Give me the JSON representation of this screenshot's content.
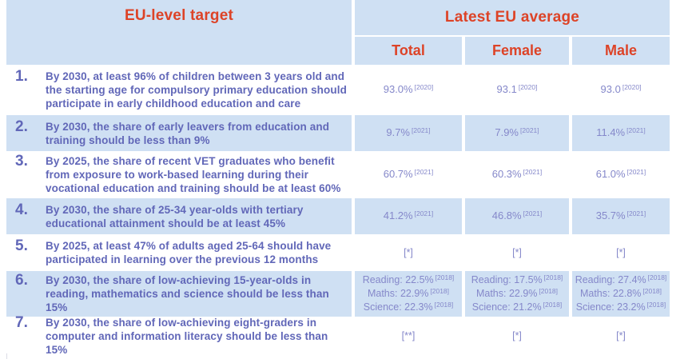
{
  "header": {
    "target": "EU-level target",
    "group": "Latest EU average",
    "cols": {
      "total": "Total",
      "female": "Female",
      "male": "Male"
    }
  },
  "rows": [
    {
      "num": "1.",
      "target": "By 2030, at least 96% of children between 3 years old and the starting age for compulsory primary education should participate in early childhood education and care",
      "total": [
        {
          "text": "93.0%",
          "sup": "[2020]"
        }
      ],
      "female": [
        {
          "text": "93.1",
          "sup": "[2020]"
        }
      ],
      "male": [
        {
          "text": "93.0",
          "sup": "[2020]"
        }
      ]
    },
    {
      "num": "2.",
      "target": "By 2030, the share of early leavers from education and training should be less than 9%",
      "total": [
        {
          "text": "9.7%",
          "sup": "[2021]"
        }
      ],
      "female": [
        {
          "text": "7.9%",
          "sup": "[2021]"
        }
      ],
      "male": [
        {
          "text": "11.4%",
          "sup": "[2021]"
        }
      ]
    },
    {
      "num": "3.",
      "target": "By 2025, the share of recent VET graduates who benefit from exposure to work-based learning during their vocational education and training should be at least 60%",
      "total": [
        {
          "text": "60.7%",
          "sup": "[2021]"
        }
      ],
      "female": [
        {
          "text": "60.3%",
          "sup": "[2021]"
        }
      ],
      "male": [
        {
          "text": "61.0%",
          "sup": "[2021]"
        }
      ]
    },
    {
      "num": "4.",
      "target": "By 2030, the share of 25-34 year-olds with tertiary educational attainment should be at least 45%",
      "total": [
        {
          "text": "41.2%",
          "sup": "[2021]"
        }
      ],
      "female": [
        {
          "text": "46.8%",
          "sup": "[2021]"
        }
      ],
      "male": [
        {
          "text": "35.7%",
          "sup": "[2021]"
        }
      ]
    },
    {
      "num": "5.",
      "target": "By 2025, at least 47% of adults aged 25-64 should have participated in learning over the previous 12 months",
      "total": [
        {
          "text": "[*]",
          "sup": ""
        }
      ],
      "female": [
        {
          "text": "[*]",
          "sup": ""
        }
      ],
      "male": [
        {
          "text": "[*]",
          "sup": ""
        }
      ]
    },
    {
      "num": "6.",
      "target": "By 2030, the share of low-achieving 15-year-olds in reading, mathematics and science should be less than 15%",
      "total": [
        {
          "text": "Reading: 22.5%",
          "sup": "[2018]"
        },
        {
          "text": "Maths: 22.9%",
          "sup": "[2018]"
        },
        {
          "text": "Science: 22.3%",
          "sup": "[2018]"
        }
      ],
      "female": [
        {
          "text": "Reading: 17.5%",
          "sup": "[2018]"
        },
        {
          "text": "Maths: 22.9%",
          "sup": "[2018]"
        },
        {
          "text": "Science: 21.2%",
          "sup": "[2018]"
        }
      ],
      "male": [
        {
          "text": "Reading: 27.4%",
          "sup": "[2018]"
        },
        {
          "text": "Maths: 22.8%",
          "sup": "[2018]"
        },
        {
          "text": "Science: 23.2%",
          "sup": "[2018]"
        }
      ]
    },
    {
      "num": "7.",
      "target": "By 2030, the share of low-achieving eight-graders in computer and information literacy should be less than 15%",
      "total": [
        {
          "text": "[**]",
          "sup": ""
        }
      ],
      "female": [
        {
          "text": "[*]",
          "sup": ""
        }
      ],
      "male": [
        {
          "text": "[*]",
          "sup": ""
        }
      ]
    }
  ],
  "colors": {
    "accent_red": "#dd4327",
    "cell_blue": "#cfe0f3",
    "text_purple": "#6167b8",
    "value_purple": "#8588ca"
  }
}
